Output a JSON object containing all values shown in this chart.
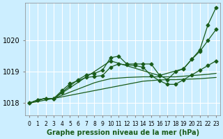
{
  "title": "Graphe pression niveau de la mer (hPa)",
  "background_color": "#cceeff",
  "grid_color": "#ffffff",
  "line_color": "#1a5c1a",
  "xlim": [
    -0.5,
    23.5
  ],
  "ylim": [
    1017.6,
    1021.2
  ],
  "yticks": [
    1018,
    1019,
    1020
  ],
  "xticks": [
    0,
    1,
    2,
    3,
    4,
    5,
    6,
    7,
    8,
    9,
    10,
    11,
    12,
    13,
    14,
    15,
    16,
    17,
    18,
    19,
    20,
    21,
    22,
    23
  ],
  "series": [
    {
      "x": [
        0,
        1,
        2,
        3,
        4,
        5,
        6,
        7,
        8,
        9,
        10,
        11,
        12,
        13,
        14,
        15,
        16,
        17,
        18,
        19,
        20,
        21,
        22,
        23
      ],
      "y": [
        1018.0,
        1018.1,
        1018.15,
        1018.15,
        1018.2,
        1018.25,
        1018.3,
        1018.35,
        1018.4,
        1018.45,
        1018.5,
        1018.55,
        1018.6,
        1018.65,
        1018.7,
        1018.72,
        1018.74,
        1018.75,
        1018.75,
        1018.76,
        1018.77,
        1018.78,
        1018.8,
        1018.82
      ],
      "marker": false
    },
    {
      "x": [
        0,
        1,
        2,
        3,
        4,
        5,
        6,
        7,
        8,
        9,
        10,
        11,
        12,
        13,
        14,
        15,
        16,
        17,
        18,
        19,
        20,
        21,
        22,
        23
      ],
      "y": [
        1018.0,
        1018.1,
        1018.15,
        1018.15,
        1018.25,
        1018.35,
        1018.45,
        1018.55,
        1018.65,
        1018.72,
        1018.78,
        1018.8,
        1018.82,
        1018.83,
        1018.84,
        1018.84,
        1018.84,
        1018.84,
        1018.84,
        1018.86,
        1018.88,
        1018.9,
        1018.92,
        1018.95
      ],
      "marker": false
    },
    {
      "x": [
        1,
        2,
        3,
        4,
        5,
        6,
        7,
        8,
        9,
        10,
        11,
        12,
        13,
        14,
        15,
        16,
        17,
        18,
        19,
        20,
        21,
        22,
        23
      ],
      "y": [
        1018.1,
        1018.15,
        1018.15,
        1018.4,
        1018.62,
        1018.72,
        1018.82,
        1018.85,
        1018.88,
        1019.15,
        1019.25,
        1019.22,
        1019.2,
        1019.15,
        1018.88,
        1018.72,
        1018.6,
        1018.6,
        1018.75,
        1018.9,
        1019.05,
        1019.2,
        1019.35
      ],
      "marker": true
    },
    {
      "x": [
        0,
        1,
        2,
        3,
        4,
        5,
        6,
        7,
        8,
        9,
        10,
        11,
        12,
        13,
        14,
        15,
        16,
        17,
        18,
        19,
        20,
        21,
        22,
        23
      ],
      "y": [
        1018.0,
        1018.1,
        1018.15,
        1018.15,
        1018.35,
        1018.55,
        1018.75,
        1018.9,
        1018.95,
        1019.05,
        1019.45,
        1019.5,
        1019.25,
        1019.25,
        1019.25,
        1019.25,
        1018.9,
        1018.75,
        1019.0,
        1019.1,
        1019.4,
        1019.65,
        1020.0,
        1020.35
      ],
      "marker": true
    },
    {
      "x": [
        0,
        3,
        10,
        16,
        19,
        20,
        21,
        22,
        23
      ],
      "y": [
        1018.0,
        1018.15,
        1019.35,
        1018.88,
        1019.1,
        1019.4,
        1019.7,
        1020.5,
        1021.05
      ],
      "marker": true
    }
  ]
}
